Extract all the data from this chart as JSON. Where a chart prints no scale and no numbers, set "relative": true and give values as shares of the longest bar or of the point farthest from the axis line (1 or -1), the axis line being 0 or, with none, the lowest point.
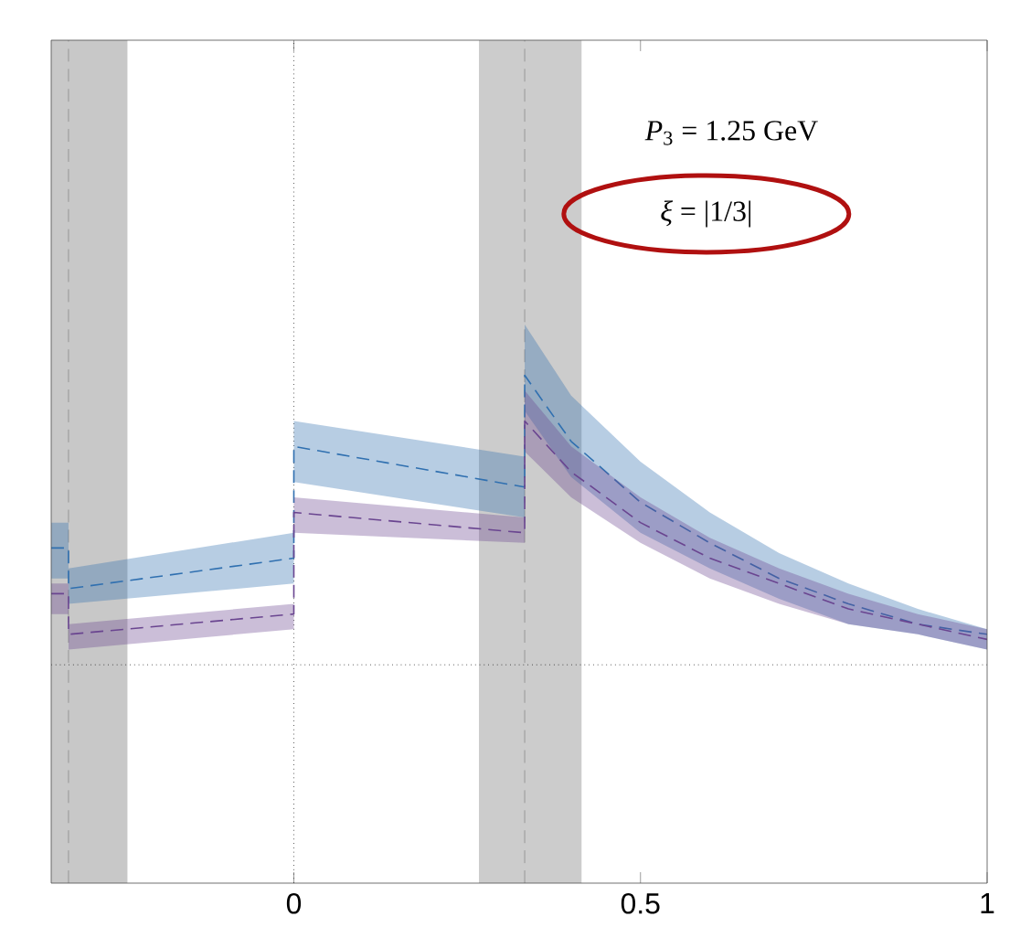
{
  "chart_data": {
    "type": "line",
    "relative": true,
    "line_style": "dashed",
    "marker": "none",
    "tick_labels": "x",
    "xlim": [
      -0.35,
      1.0
    ],
    "xticks": [
      0,
      0.5,
      1
    ],
    "x": [
      -0.35,
      -0.325,
      -0.325,
      0,
      0,
      0.333,
      0.333,
      0.4,
      0.5,
      0.6,
      0.7,
      0.8,
      0.9,
      1.0
    ],
    "series": [
      {
        "color": "#3070b0",
        "values": [
          0.66,
          0.66,
          0.58,
          0.64,
          0.86,
          0.78,
          1.0,
          0.87,
          0.75,
          0.67,
          0.6,
          0.55,
          0.51,
          0.49
        ],
        "upper": [
          0.71,
          0.71,
          0.62,
          0.69,
          0.91,
          0.84,
          1.1,
          0.96,
          0.83,
          0.73,
          0.65,
          0.59,
          0.54,
          0.5
        ],
        "lower": [
          0.6,
          0.6,
          0.55,
          0.59,
          0.79,
          0.72,
          0.93,
          0.8,
          0.69,
          0.62,
          0.56,
          0.51,
          0.49,
          0.46
        ]
      },
      {
        "color": "#6a4590",
        "values": [
          0.57,
          0.57,
          0.49,
          0.53,
          0.73,
          0.69,
          0.91,
          0.81,
          0.71,
          0.64,
          0.59,
          0.54,
          0.51,
          0.48
        ],
        "upper": [
          0.59,
          0.59,
          0.51,
          0.55,
          0.76,
          0.72,
          0.97,
          0.86,
          0.76,
          0.68,
          0.62,
          0.57,
          0.53,
          0.5
        ],
        "lower": [
          0.53,
          0.53,
          0.46,
          0.5,
          0.69,
          0.67,
          0.85,
          0.76,
          0.67,
          0.6,
          0.55,
          0.51,
          0.49,
          0.46
        ]
      }
    ],
    "bands": [
      {
        "axis": "x",
        "from": -0.35,
        "to": -0.24,
        "color": "#c8c8c8"
      },
      {
        "axis": "x",
        "from": 0.267,
        "to": 0.415,
        "color": "#cccccc"
      }
    ],
    "ref_lines": [
      {
        "axis": "x",
        "value": 0,
        "line_style": "dotted",
        "color": "#000000"
      },
      {
        "axis": "y",
        "value": 0.43,
        "line_style": "dotted",
        "color": "#000000"
      },
      {
        "axis": "x",
        "value": 0.333,
        "line_style": "dashed",
        "color": "#888888"
      },
      {
        "axis": "x",
        "value": -0.325,
        "line_style": "dashed",
        "color": "#888888"
      }
    ],
    "annotations": [
      "*P*$_{3}$ = 1.25 GeV",
      "*ξ* = |1/3|"
    ]
  }
}
